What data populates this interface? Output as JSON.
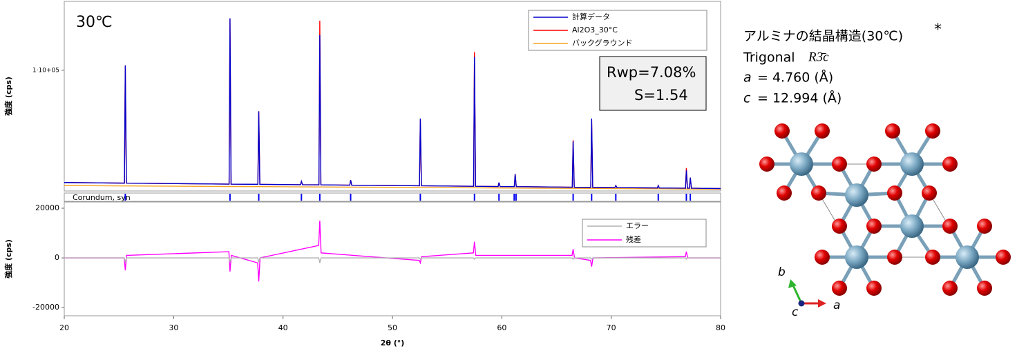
{
  "chart_data": [
    {
      "type": "line",
      "annotation": "30℃",
      "stats": [
        "Rwp=7.08%",
        "S=1.54"
      ],
      "ylabel": "強度 (cps)",
      "xlim": [
        20,
        80
      ],
      "ylim": [
        0,
        157000
      ],
      "yticks": [
        {
          "value": 100000,
          "label": "1·10+05"
        }
      ],
      "x": [
        20,
        25.5,
        25.58,
        25.68,
        35.07,
        35.15,
        35.25,
        37.7,
        37.78,
        37.88,
        41.6,
        41.68,
        41.78,
        43.28,
        43.36,
        43.46,
        46.1,
        46.18,
        46.28,
        52.47,
        52.55,
        52.65,
        57.42,
        57.5,
        57.6,
        59.66,
        59.74,
        59.84,
        61.14,
        61.22,
        61.32,
        66.44,
        66.52,
        66.62,
        68.13,
        68.21,
        68.31,
        70.34,
        70.42,
        70.52,
        74.22,
        74.3,
        74.4,
        76.79,
        76.87,
        76.97,
        77.15,
        77.23,
        77.33,
        80
      ],
      "series": [
        {
          "name": "計算データ",
          "color": "#0000cc",
          "values": [
            7000,
            6500,
            104000,
            6500,
            5700,
            143000,
            5700,
            5500,
            66000,
            5500,
            5200,
            8000,
            5200,
            5100,
            129000,
            5100,
            4800,
            9000,
            4800,
            4300,
            60000,
            4300,
            3900,
            111000,
            3900,
            3700,
            7000,
            3700,
            3600,
            14000,
            3600,
            3100,
            41000,
            3100,
            3000,
            60000,
            3000,
            2800,
            4500,
            2800,
            2500,
            4500,
            2500,
            2300,
            17000,
            2300,
            2300,
            11000,
            2300,
            2000
          ]
        },
        {
          "name": "Al2O3_30°C",
          "color": "#ff0000",
          "values": [
            7000,
            6500,
            104000,
            6500,
            5700,
            142000,
            5700,
            5500,
            66000,
            5500,
            5200,
            8000,
            5200,
            5100,
            141000,
            5100,
            4800,
            9000,
            4800,
            4300,
            59000,
            4300,
            3900,
            115000,
            3900,
            3700,
            7000,
            3700,
            3600,
            14000,
            3600,
            3100,
            42000,
            3100,
            3000,
            59000,
            3000,
            2800,
            4500,
            2800,
            2500,
            4500,
            2500,
            2300,
            19000,
            2300,
            2300,
            11000,
            2300,
            2000
          ]
        },
        {
          "name": "バックグラウンド",
          "color": "#f5a623",
          "values": [
            4500,
            4200,
            4200,
            4200,
            3700,
            3700,
            3700,
            3600,
            3600,
            3600,
            3400,
            3400,
            3400,
            3300,
            3300,
            3300,
            3200,
            3200,
            3200,
            2900,
            2900,
            2900,
            2600,
            2600,
            2600,
            2500,
            2500,
            2500,
            2400,
            2400,
            2400,
            2200,
            2200,
            2200,
            2100,
            2100,
            2100,
            2000,
            2000,
            2000,
            1800,
            1800,
            1800,
            1600,
            1600,
            1600,
            1600,
            1600,
            1600,
            1500
          ]
        }
      ],
      "phase": {
        "name": "Corundum, syn",
        "color": "#0000ee",
        "positions": [
          25.58,
          35.15,
          37.78,
          41.68,
          43.36,
          46.18,
          52.55,
          57.5,
          59.74,
          61.13,
          61.3,
          66.52,
          68.21,
          70.42,
          74.3,
          76.87,
          77.23
        ]
      }
    },
    {
      "type": "line",
      "ylabel": "強度 (cps)",
      "xlabel": "2θ (°)",
      "xlim": [
        20,
        80
      ],
      "xticks": [
        20,
        30,
        40,
        50,
        60,
        70,
        80
      ],
      "ylim": [
        -23300,
        22500
      ],
      "yticks": [
        20000,
        0,
        -20000
      ],
      "x": [
        20,
        25.48,
        25.58,
        25.7,
        35.05,
        35.15,
        35.27,
        37.68,
        37.78,
        37.9,
        43.26,
        43.36,
        43.48,
        52.45,
        52.55,
        52.67,
        57.4,
        57.5,
        57.62,
        66.42,
        66.52,
        66.64,
        68.11,
        68.21,
        68.33,
        76.77,
        76.87,
        76.99,
        80
      ],
      "series": [
        {
          "name": "エラー",
          "color": "#b0b0b0",
          "values": [
            0,
            0,
            -1500,
            0,
            0,
            -1500,
            0,
            0,
            -1500,
            0,
            0,
            -2000,
            0,
            0,
            -500,
            0,
            0,
            -500,
            0,
            0,
            -500,
            0,
            0,
            -500,
            0,
            0,
            -500,
            0,
            0
          ]
        },
        {
          "name": "残差",
          "color": "#ff00ff",
          "values": [
            0,
            0,
            -5000,
            1000,
            2500,
            -5500,
            1000,
            -2000,
            -9500,
            0,
            5000,
            15000,
            2000,
            -1000,
            -2000,
            500,
            2000,
            6500,
            1000,
            1000,
            3500,
            0,
            -1000,
            -3500,
            0,
            500,
            2500,
            0,
            0
          ]
        }
      ]
    }
  ],
  "structure": {
    "title": "アルミナの結晶構造(30℃)",
    "title_mark": "*",
    "system": "Trigonal",
    "space_group": "R3̄c",
    "params": [
      {
        "symbol": "a",
        "text": "= 4.760 (Å)"
      },
      {
        "symbol": "c",
        "text": "= 12.994 (Å)"
      }
    ],
    "axes": [
      "b",
      "c",
      "a"
    ]
  }
}
